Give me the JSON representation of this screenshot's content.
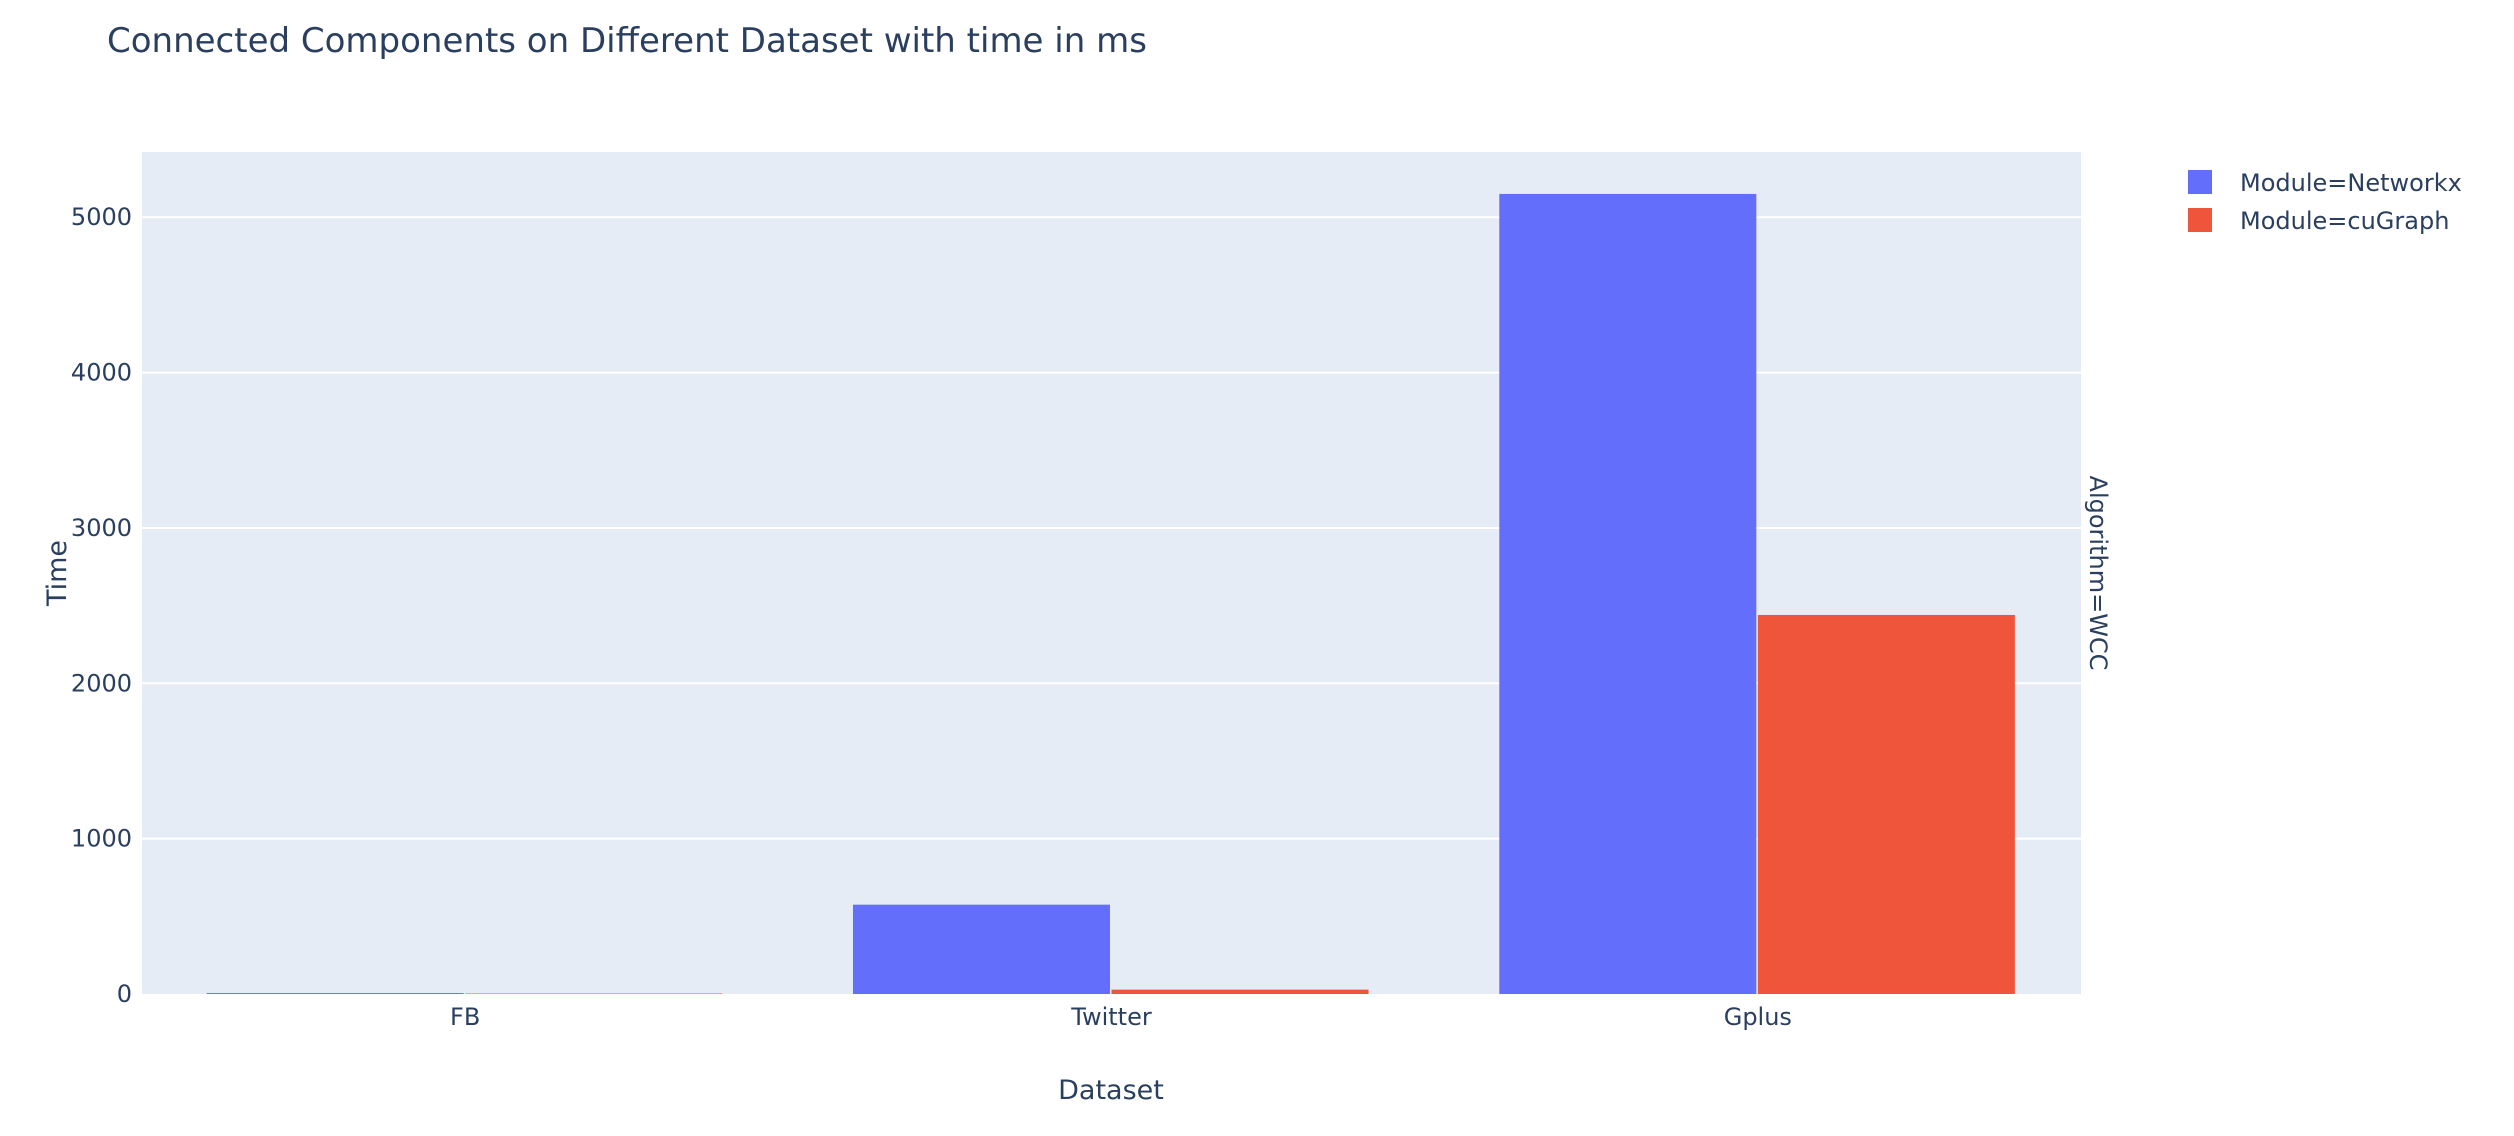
{
  "chart_data": {
    "type": "bar",
    "title": "Connected Components on Different Dataset with time in ms",
    "xlabel": "Dataset",
    "ylabel": "Time",
    "facet_label": "Algorithm=WCC",
    "categories": [
      "FB",
      "Twitter",
      "Gplus"
    ],
    "series": [
      {
        "name": "Module=Networkx",
        "color": "#636efa",
        "values": [
          6,
          575,
          5150
        ]
      },
      {
        "name": "Module=cuGraph",
        "color": "#ef553b",
        "values": [
          3,
          28,
          2440
        ]
      }
    ],
    "ylim": [
      0,
      5420
    ],
    "yticks": [
      0,
      1000,
      2000,
      3000,
      4000,
      5000
    ],
    "grid": true,
    "legend_position": "top-right",
    "plot_bgcolor": "#e5ecf6",
    "gridcolor": "#ffffff",
    "text_color": "#2a3f5f"
  }
}
